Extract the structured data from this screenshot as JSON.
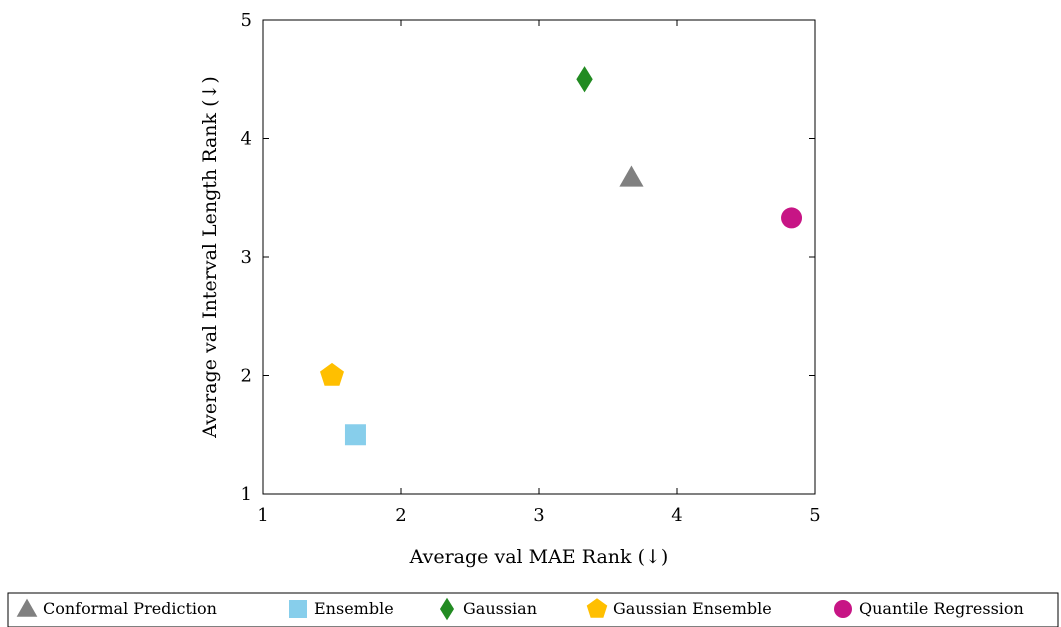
{
  "chart_data": {
    "type": "scatter",
    "title": "",
    "xlabel": "Average val MAE Rank (↓)",
    "ylabel": "Average val Interval Length Rank (↓)",
    "xlim": [
      1,
      5
    ],
    "ylim": [
      1,
      5
    ],
    "xticks": [
      1,
      2,
      3,
      4,
      5
    ],
    "yticks": [
      1,
      2,
      3,
      4,
      5
    ],
    "grid": false,
    "legend_position": "bottom",
    "series": [
      {
        "name": "Conformal Prediction",
        "marker": "triangle",
        "color": "#808080",
        "x": 3.67,
        "y": 3.67
      },
      {
        "name": "Ensemble",
        "marker": "square",
        "color": "#87CEEB",
        "x": 1.67,
        "y": 1.5
      },
      {
        "name": "Gaussian",
        "marker": "diamond",
        "color": "#228B22",
        "x": 3.33,
        "y": 4.5
      },
      {
        "name": "Gaussian Ensemble",
        "marker": "pentagon",
        "color": "#FFBF00",
        "x": 1.5,
        "y": 2.0
      },
      {
        "name": "Quantile Regression",
        "marker": "circle",
        "color": "#C71585",
        "x": 4.83,
        "y": 3.33
      }
    ]
  }
}
